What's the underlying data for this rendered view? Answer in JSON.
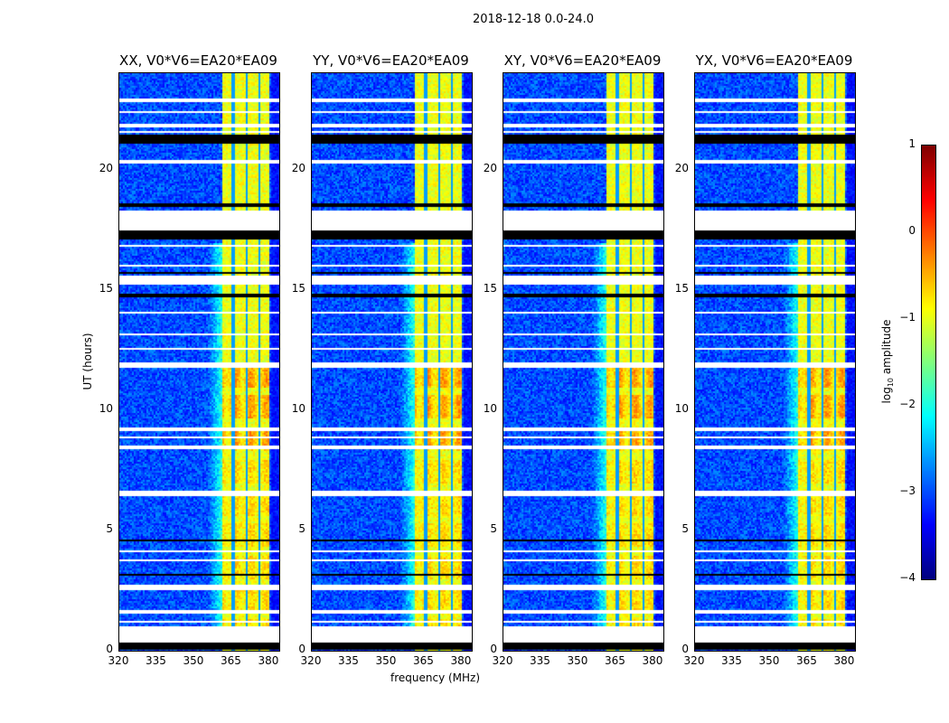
{
  "suptitle": "2018-12-18 0.0-24.0",
  "chart_data": {
    "type": "heatmap",
    "title": "2018-12-18 0.0-24.0",
    "xlabel": "frequency (MHz)",
    "ylabel": "UT (hours)",
    "xlim": [
      320,
      384
    ],
    "ylim": [
      0,
      24
    ],
    "xticks": [
      "320",
      "335",
      "350",
      "365",
      "380"
    ],
    "yticks": [
      "0",
      "5",
      "10",
      "15",
      "20"
    ],
    "xtick_values": [
      320,
      335,
      350,
      365,
      380
    ],
    "ytick_values": [
      0,
      5,
      10,
      15,
      20
    ],
    "panels": [
      {
        "title": "XX, V0*V6=EA20*EA09"
      },
      {
        "title": "YY, V0*V6=EA20*EA09"
      },
      {
        "title": "XY, V0*V6=EA20*EA09"
      },
      {
        "title": "YX, V0*V6=EA20*EA09"
      }
    ],
    "bright_band_mhz": [
      360.5,
      380
    ],
    "background_log10_amplitude": -3,
    "band_log10_amplitude": -1,
    "flagged_white_hours": [
      [
        22.85,
        23.0
      ],
      [
        22.4,
        22.45
      ],
      [
        21.8,
        21.9
      ],
      [
        21.55,
        21.6
      ],
      [
        20.3,
        20.4
      ],
      [
        18.75,
        18.8
      ],
      [
        17.5,
        18.3
      ],
      [
        16.85,
        16.9
      ],
      [
        16.0,
        16.1
      ],
      [
        15.25,
        15.6
      ],
      [
        14.05,
        14.1
      ],
      [
        13.15,
        13.2
      ],
      [
        12.55,
        12.6
      ],
      [
        11.8,
        12.05
      ],
      [
        9.15,
        9.35
      ],
      [
        8.85,
        8.95
      ],
      [
        8.45,
        8.55
      ],
      [
        7.25,
        7.3
      ],
      [
        6.95,
        7.0
      ],
      [
        6.45,
        6.65
      ],
      [
        4.1,
        4.2
      ],
      [
        3.75,
        3.8
      ],
      [
        3.35,
        3.4
      ],
      [
        2.55,
        2.75
      ],
      [
        1.6,
        1.7
      ],
      [
        1.2,
        1.3
      ],
      [
        0.4,
        1.05
      ]
    ],
    "flagged_black_hours": [
      [
        21.1,
        21.45
      ],
      [
        18.45,
        18.6
      ],
      [
        17.1,
        17.5
      ],
      [
        15.7,
        15.8
      ],
      [
        15.15,
        15.2
      ],
      [
        14.75,
        14.9
      ],
      [
        4.6,
        4.65
      ],
      [
        3.15,
        3.25
      ],
      [
        0.1,
        0.4
      ]
    ],
    "colorbar": {
      "label_main": "log",
      "label_sub": "10",
      "label_rest": " amplitude",
      "ticks": [
        "1",
        "0",
        "−1",
        "−2",
        "−3",
        "−4"
      ],
      "tick_values": [
        1,
        0,
        -1,
        -2,
        -3,
        -4
      ],
      "range": [
        -4,
        1
      ],
      "colormap": "jet"
    }
  }
}
